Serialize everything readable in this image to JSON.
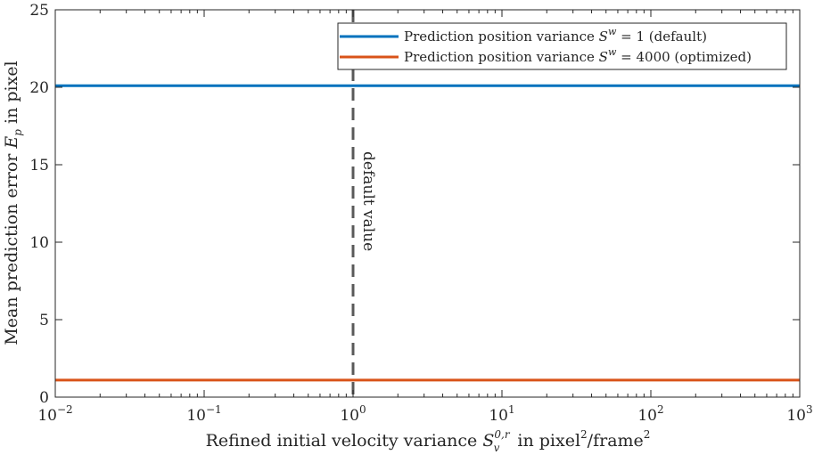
{
  "chart_data": {
    "type": "line",
    "xscale": "log",
    "xlim": [
      0.01,
      1000
    ],
    "ylim": [
      0,
      25
    ],
    "grid": false,
    "legend_position": "top-right",
    "xlabel": "Refined initial velocity variance S_v^{0,r} in pixel^2/frame^2",
    "ylabel": "Mean prediction error E_p in pixel",
    "x_ticks": [
      {
        "base": "10",
        "exp": "−2",
        "value": 0.01
      },
      {
        "base": "10",
        "exp": "−1",
        "value": 0.1
      },
      {
        "base": "10",
        "exp": "0",
        "value": 1
      },
      {
        "base": "10",
        "exp": "1",
        "value": 10
      },
      {
        "base": "10",
        "exp": "2",
        "value": 100
      },
      {
        "base": "10",
        "exp": "3",
        "value": 1000
      }
    ],
    "y_ticks": [
      0,
      5,
      10,
      15,
      20,
      25
    ],
    "series": [
      {
        "name": "Prediction position variance S^w = 1 (default)",
        "color": "#0072BD",
        "x": [
          0.01,
          1000
        ],
        "y": [
          20.1,
          20.1
        ]
      },
      {
        "name": "Prediction position variance S^w = 4000 (optimized)",
        "color": "#D95319",
        "x": [
          0.01,
          1000
        ],
        "y": [
          1.1,
          1.1
        ]
      }
    ],
    "annotations": [
      {
        "type": "vline",
        "x": 1,
        "style": "dashed",
        "color": "#595959",
        "text": "default value"
      }
    ]
  }
}
